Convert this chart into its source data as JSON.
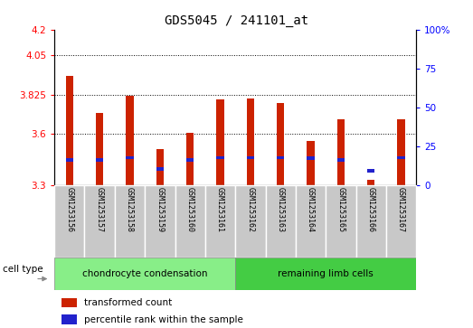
{
  "title": "GDS5045 / 241101_at",
  "samples": [
    "GSM1253156",
    "GSM1253157",
    "GSM1253158",
    "GSM1253159",
    "GSM1253160",
    "GSM1253161",
    "GSM1253162",
    "GSM1253163",
    "GSM1253164",
    "GSM1253165",
    "GSM1253166",
    "GSM1253167"
  ],
  "transformed_count": [
    3.93,
    3.72,
    3.815,
    3.51,
    3.605,
    3.795,
    3.8,
    3.775,
    3.555,
    3.68,
    3.33,
    3.68
  ],
  "percentile_bottom": [
    3.435,
    3.435,
    3.45,
    3.385,
    3.435,
    3.45,
    3.45,
    3.45,
    3.445,
    3.435,
    3.375,
    3.45
  ],
  "percentile_top": [
    3.455,
    3.455,
    3.47,
    3.405,
    3.455,
    3.47,
    3.47,
    3.47,
    3.465,
    3.455,
    3.395,
    3.47
  ],
  "bar_bottom": 3.3,
  "ylim_left": [
    3.3,
    4.2
  ],
  "ylim_right": [
    0,
    100
  ],
  "yticks_left": [
    3.3,
    3.6,
    3.825,
    4.05,
    4.2
  ],
  "ytick_labels_left": [
    "3.3",
    "3.6",
    "3.825",
    "4.05",
    "4.2"
  ],
  "yticks_right": [
    0,
    25,
    50,
    75,
    100
  ],
  "ytick_labels_right": [
    "0",
    "25",
    "50",
    "75",
    "100%"
  ],
  "hlines": [
    3.6,
    3.825,
    4.05
  ],
  "group1_label": "chondrocyte condensation",
  "group2_label": "remaining limb cells",
  "group1_count": 6,
  "group2_count": 6,
  "cell_type_label": "cell type",
  "legend1_label": "transformed count",
  "legend2_label": "percentile rank within the sample",
  "bar_color": "#CC2200",
  "percentile_color": "#2222CC",
  "bg_plot": "#FFFFFF",
  "xticklabel_bg": "#C8C8C8",
  "group1_color": "#88EE88",
  "group2_color": "#44CC44",
  "title_fontsize": 10,
  "tick_fontsize": 7.5,
  "bar_width": 0.25
}
